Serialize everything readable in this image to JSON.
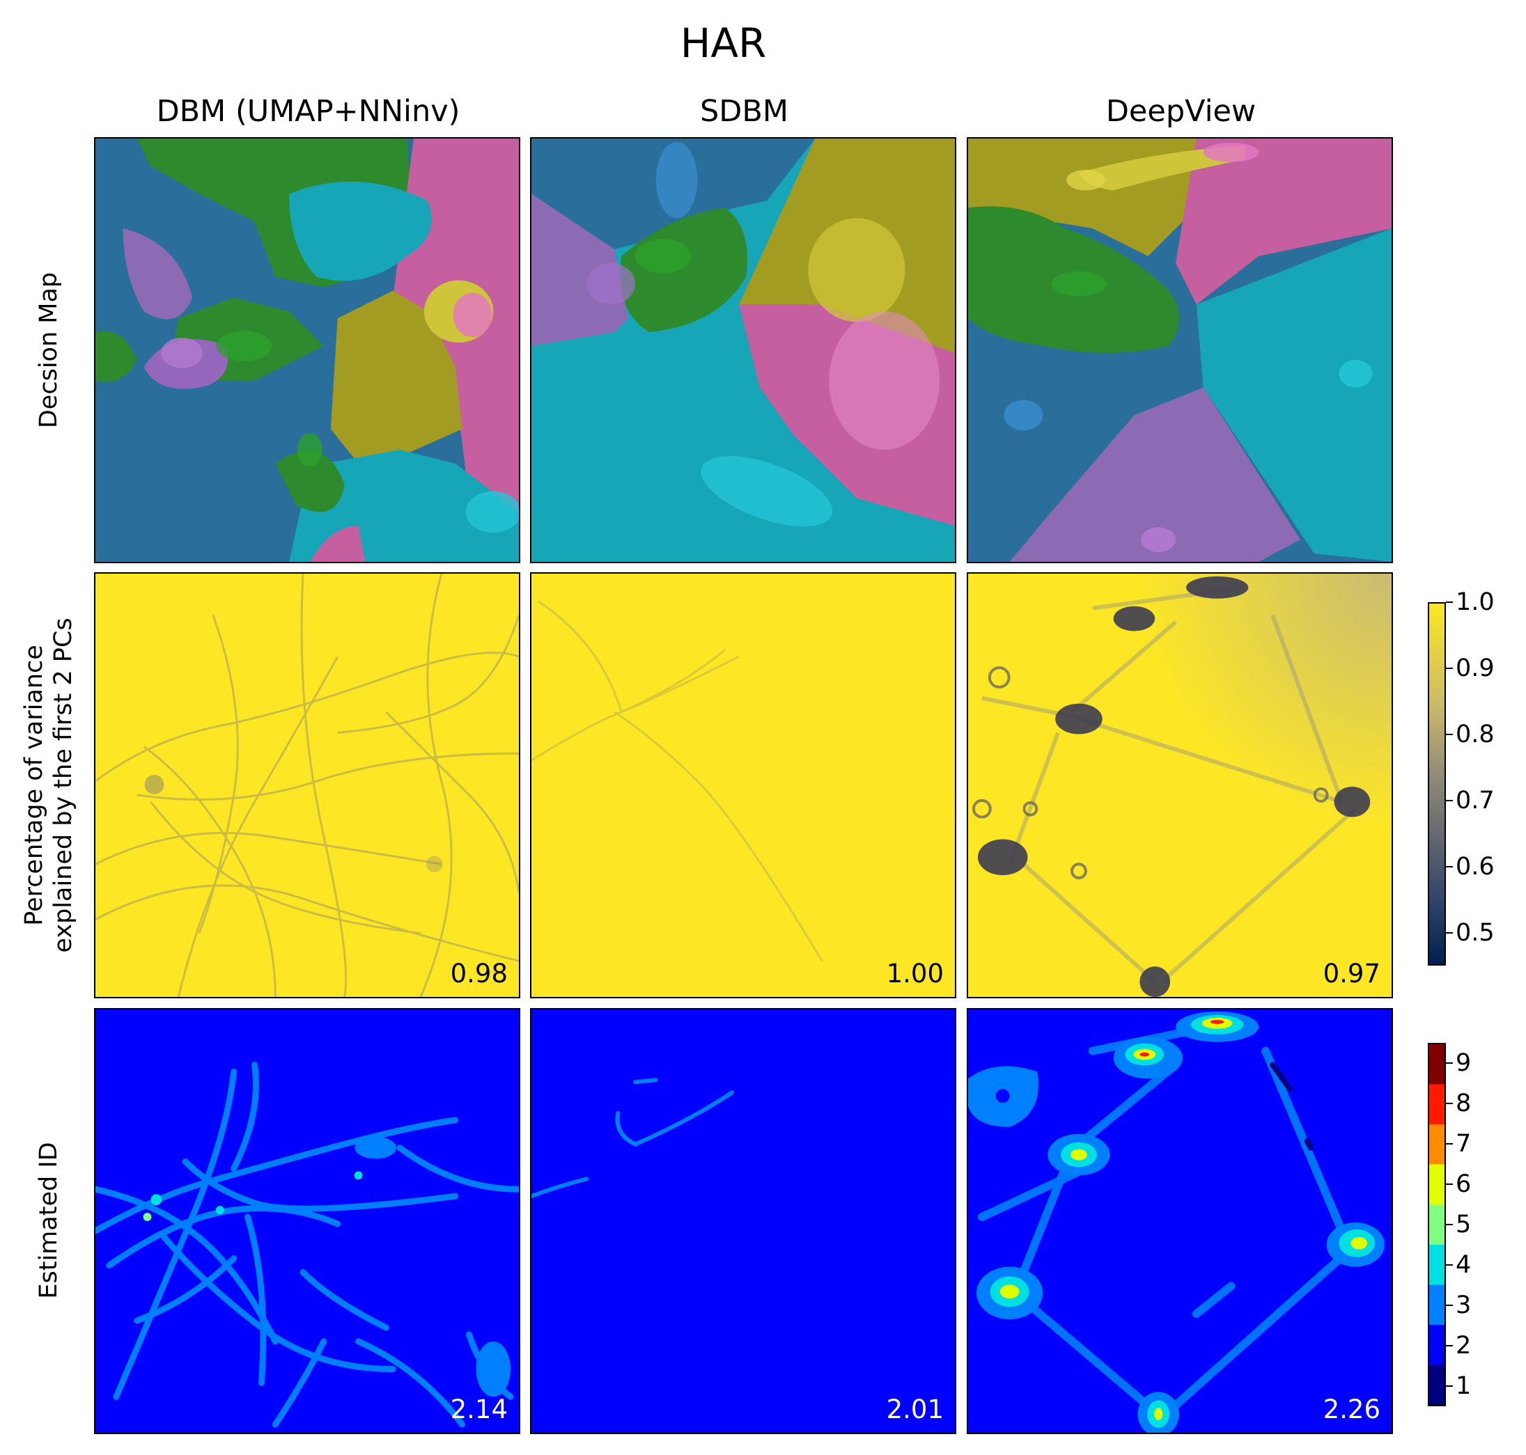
{
  "figure": {
    "title": "HAR"
  },
  "columns": [
    "DBM (UMAP+NNinv)",
    "SDBM",
    "DeepView"
  ],
  "rows": [
    "Decsion Map",
    "Percentage of variance\nexplained by the first 2 PCs",
    "Estimated ID"
  ],
  "colors": {
    "class_palette": [
      "#1f77b4",
      "#2ca02c",
      "#9467bd",
      "#17becf",
      "#bcbd22",
      "#e377c2"
    ],
    "variance_high": "#fde725",
    "variance_low": "#00204c",
    "id_base": "#0000ff",
    "id_level3": "#0080ff"
  },
  "chart_data": {
    "type": "heatmap",
    "title": "HAR",
    "panels": [
      {
        "row": "Decsion Map",
        "column": "DBM (UMAP+NNinv)",
        "kind": "decision-map"
      },
      {
        "row": "Decsion Map",
        "column": "SDBM",
        "kind": "decision-map"
      },
      {
        "row": "Decsion Map",
        "column": "DeepView",
        "kind": "decision-map"
      },
      {
        "row": "Percentage of variance\nexplained by the first 2 PCs",
        "column": "DBM (UMAP+NNinv)",
        "kind": "variance",
        "value": "0.98"
      },
      {
        "row": "Percentage of variance\nexplained by the first 2 PCs",
        "column": "SDBM",
        "kind": "variance",
        "value": "1.00"
      },
      {
        "row": "Percentage of variance\nexplained by the first 2 PCs",
        "column": "DeepView",
        "kind": "variance",
        "value": "0.97"
      },
      {
        "row": "Estimated ID",
        "column": "DBM (UMAP+NNinv)",
        "kind": "id",
        "value": "2.14"
      },
      {
        "row": "Estimated ID",
        "column": "SDBM",
        "kind": "id",
        "value": "2.01"
      },
      {
        "row": "Estimated ID",
        "column": "DeepView",
        "kind": "id",
        "value": "2.26"
      }
    ],
    "colorbars": [
      {
        "name": "variance",
        "range": [
          0.45,
          1.0
        ],
        "ticks": [
          "1.0",
          "0.9",
          "0.8",
          "0.7",
          "0.6",
          "0.5"
        ],
        "tick_values": [
          1.0,
          0.9,
          0.8,
          0.7,
          0.6,
          0.5
        ],
        "colormap": "cividis"
      },
      {
        "name": "estimated-id",
        "range": [
          0.5,
          9.5
        ],
        "ticks": [
          "9",
          "8",
          "7",
          "6",
          "5",
          "4",
          "3",
          "2",
          "1"
        ],
        "tick_values": [
          9,
          8,
          7,
          6,
          5,
          4,
          3,
          2,
          1
        ],
        "colormap": "jet (discrete)",
        "levels": [
          "#000080",
          "#0000ff",
          "#0080ff",
          "#00e0e0",
          "#80ff80",
          "#e0ff00",
          "#ff8c00",
          "#ff1a00",
          "#800000"
        ]
      }
    ]
  }
}
